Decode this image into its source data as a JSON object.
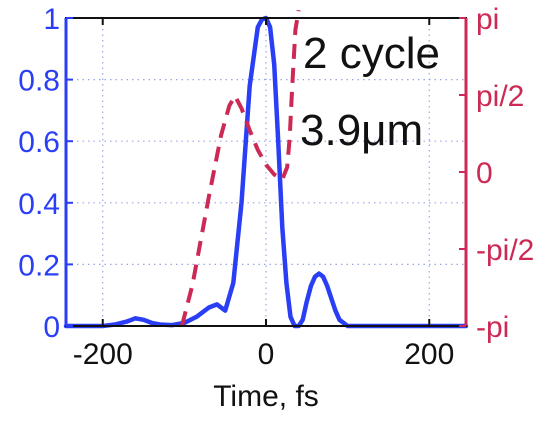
{
  "chart_data": {
    "type": "line",
    "title": "",
    "xlabel": "Time, fs",
    "ylabel": "",
    "x_range": [
      -245,
      245
    ],
    "y_range": [
      0,
      1
    ],
    "right_y_range": [
      -3.14159,
      3.14159
    ],
    "x_ticks": [
      {
        "value": -200,
        "label": "-200"
      },
      {
        "value": 0,
        "label": "0"
      },
      {
        "value": 200,
        "label": "200"
      }
    ],
    "y_ticks": [
      {
        "value": 0,
        "label": "0"
      },
      {
        "value": 0.2,
        "label": "0.2"
      },
      {
        "value": 0.4,
        "label": "0.4"
      },
      {
        "value": 0.6,
        "label": "0.6"
      },
      {
        "value": 0.8,
        "label": "0.8"
      },
      {
        "value": 1,
        "label": "1"
      }
    ],
    "right_y_ticks": [
      {
        "value": -3.14159,
        "label": "-pi"
      },
      {
        "value": -1.5708,
        "label": "-pi/2"
      },
      {
        "value": 0,
        "label": "0"
      },
      {
        "value": 1.5708,
        "label": "pi/2"
      },
      {
        "value": 3.14159,
        "label": "pi"
      }
    ],
    "annotations": [
      "2 cycle",
      "3.9μm"
    ],
    "grid": true,
    "colors": {
      "intensity": "#2a3ff5",
      "phase": "#cc2a55",
      "grid": "#9aa6e8",
      "axis": "#111111"
    },
    "series": [
      {
        "style": "solid",
        "axis": "left",
        "x": [
          -245,
          -200,
          -185,
          -170,
          -160,
          -150,
          -140,
          -130,
          -115,
          -100,
          -85,
          -70,
          -60,
          -50,
          -40,
          -30,
          -20,
          -10,
          -5,
          0,
          5,
          10,
          15,
          20,
          25,
          30,
          35,
          40,
          45,
          50,
          55,
          60,
          65,
          70,
          75,
          80,
          85,
          90,
          100,
          115,
          130,
          150,
          170,
          200,
          245
        ],
        "values": [
          0,
          0,
          0.005,
          0.015,
          0.025,
          0.02,
          0.01,
          0.005,
          0.003,
          0.01,
          0.03,
          0.06,
          0.07,
          0.05,
          0.14,
          0.4,
          0.78,
          0.97,
          0.995,
          1.0,
          0.97,
          0.85,
          0.6,
          0.32,
          0.14,
          0.03,
          0.0,
          0.0,
          0.02,
          0.08,
          0.13,
          0.16,
          0.17,
          0.16,
          0.13,
          0.09,
          0.05,
          0.02,
          0.0,
          0.0,
          0.0,
          0.0,
          0.0,
          0.0,
          0.0
        ]
      },
      {
        "style": "dashed",
        "axis": "right",
        "x": [
          -103,
          -90,
          -70,
          -55,
          -45,
          -38,
          -30,
          -20,
          -10,
          0,
          10,
          20,
          26,
          29,
          32,
          36,
          40
        ],
        "values": [
          -3.14,
          -2.3,
          -0.5,
          0.75,
          1.35,
          1.55,
          1.3,
          0.85,
          0.45,
          0.15,
          -0.05,
          -0.15,
          0.1,
          0.7,
          1.7,
          2.9,
          3.3
        ]
      }
    ]
  }
}
